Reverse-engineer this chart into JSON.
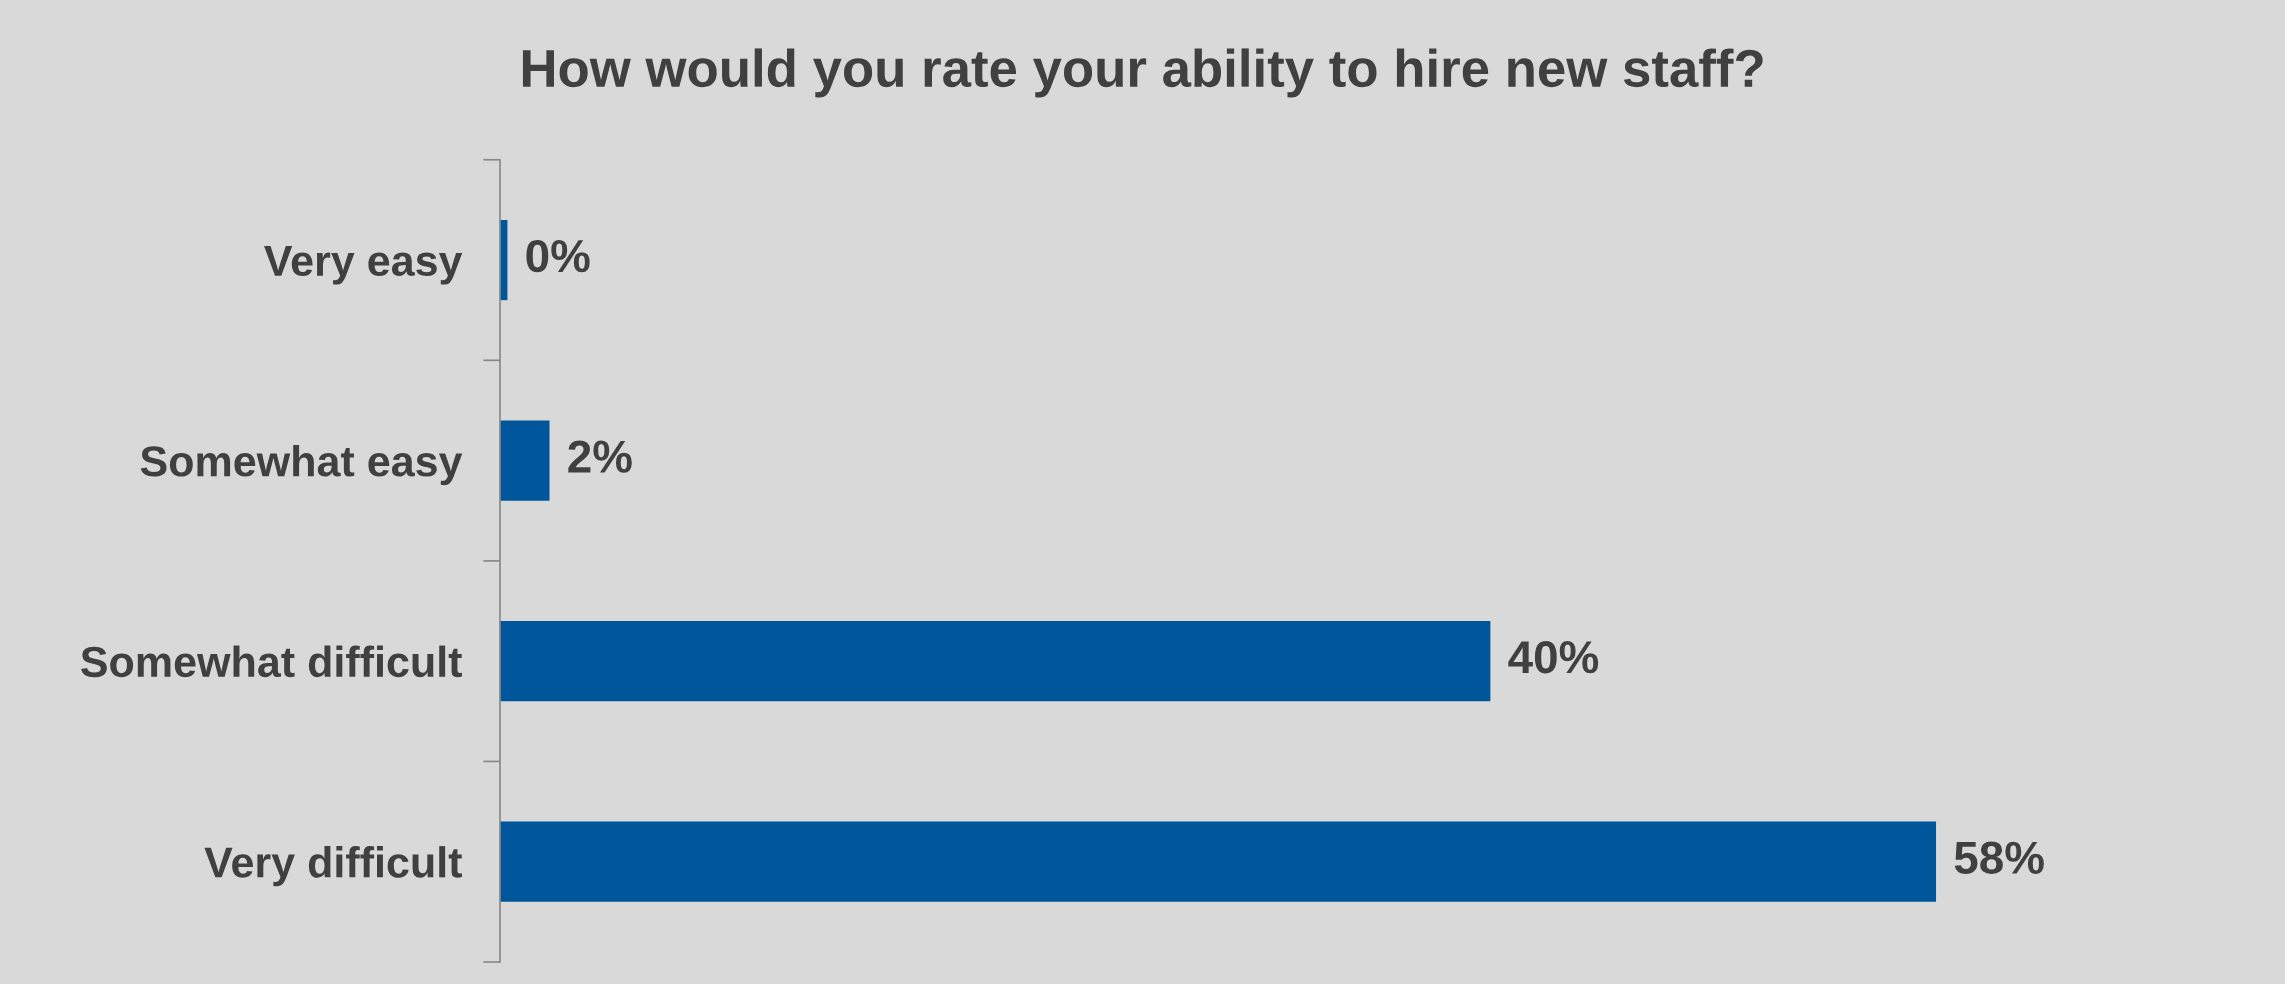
{
  "chart_data": {
    "type": "bar",
    "orientation": "horizontal",
    "title": "How would you rate your ability to hire new staff?",
    "categories": [
      "Very easy",
      "Somewhat easy",
      "Somewhat difficult",
      "Very difficult"
    ],
    "values": [
      0.3,
      2,
      40,
      58
    ],
    "value_labels": [
      "0%",
      "2%",
      "40%",
      "58%"
    ],
    "color": "#00569a",
    "grid": false
  }
}
